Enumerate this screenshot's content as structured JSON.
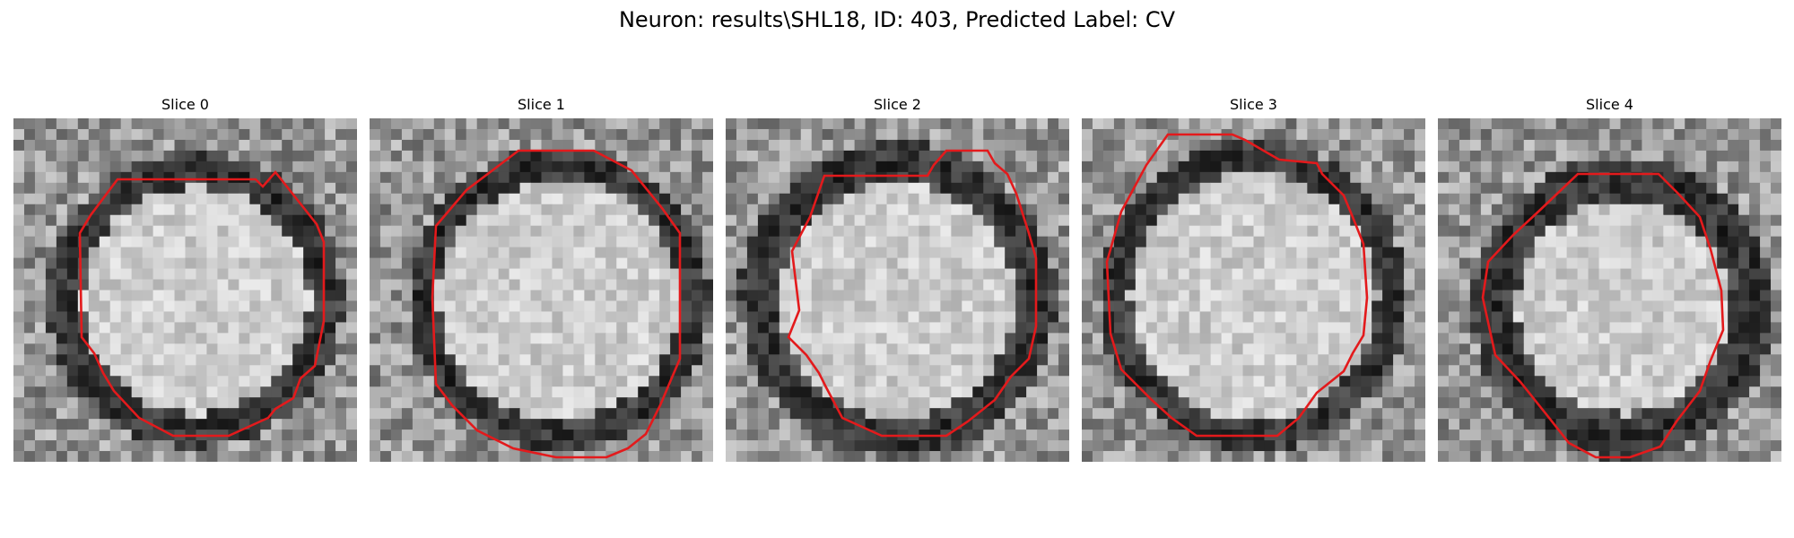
{
  "title": "Neuron: results\\SHL18, ID: 403, Predicted Label: CV",
  "slices": [
    {
      "label": "Slice 0"
    },
    {
      "label": "Slice 1"
    },
    {
      "label": "Slice 2"
    },
    {
      "label": "Slice 3"
    },
    {
      "label": "Slice 4"
    }
  ],
  "colors": {
    "contour": "#e31a1c"
  }
}
